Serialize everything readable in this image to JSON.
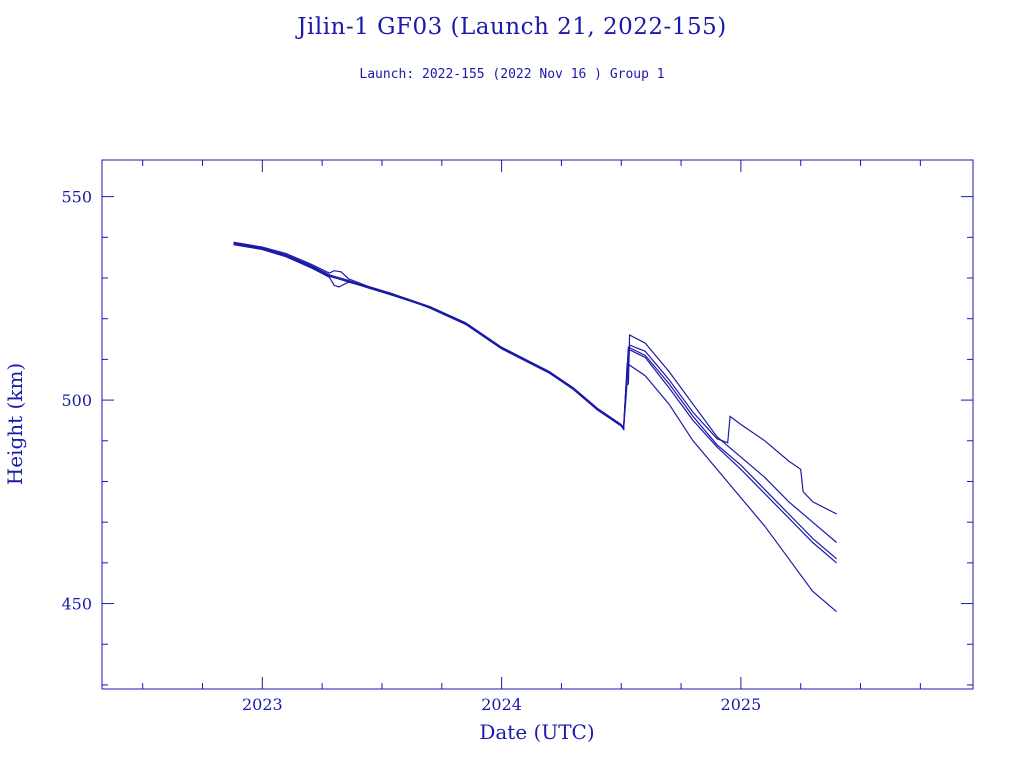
{
  "chart_data": {
    "type": "line",
    "title": "Jilin-1 GF03 (Launch 21, 2022-155)",
    "subtitle": "Launch: 2022-155  (2022 Nov 16 )  Group 1",
    "xlabel": "Date (UTC)",
    "ylabel": "Height (km)",
    "x_unit": "year",
    "xlim": [
      2022.33,
      2025.97
    ],
    "ylim": [
      429,
      559
    ],
    "x_ticks": [
      2023,
      2024,
      2025
    ],
    "x_tick_labels": [
      "2023",
      "2024",
      "2025"
    ],
    "y_ticks": [
      450,
      500,
      550
    ],
    "y_tick_labels": [
      "450",
      "500",
      "550"
    ],
    "grid": false,
    "line_color": "#1a1aa8",
    "series": [
      {
        "values": [
          [
            2022.88,
            538.8
          ],
          [
            2023.0,
            537.6
          ],
          [
            2023.1,
            536.0
          ],
          [
            2023.2,
            533.5
          ],
          [
            2023.28,
            531.2
          ],
          [
            2023.3,
            531.8
          ],
          [
            2023.33,
            531.5
          ],
          [
            2023.36,
            529.8
          ],
          [
            2023.45,
            527.8
          ],
          [
            2023.54,
            526.2
          ],
          [
            2023.7,
            523.0
          ],
          [
            2023.85,
            519.0
          ],
          [
            2024.0,
            513.0
          ],
          [
            2024.2,
            507.0
          ],
          [
            2024.3,
            503.0
          ],
          [
            2024.4,
            498.0
          ],
          [
            2024.5,
            494.0
          ],
          [
            2024.51,
            493.2
          ],
          [
            2024.52,
            503.5
          ],
          [
            2024.53,
            504.0
          ],
          [
            2024.535,
            516.0
          ],
          [
            2024.6,
            514.0
          ],
          [
            2024.7,
            507.0
          ],
          [
            2024.8,
            499.0
          ],
          [
            2024.9,
            491.0
          ],
          [
            2024.95,
            488.5
          ],
          [
            2025.0,
            486.0
          ],
          [
            2025.1,
            481.0
          ],
          [
            2025.2,
            475.0
          ],
          [
            2025.3,
            470.0
          ],
          [
            2025.4,
            465.0
          ]
        ]
      },
      {
        "values": [
          [
            2022.88,
            538.4
          ],
          [
            2023.0,
            537.2
          ],
          [
            2023.1,
            535.5
          ],
          [
            2023.2,
            533.0
          ],
          [
            2023.28,
            530.5
          ],
          [
            2023.36,
            529.0
          ],
          [
            2023.45,
            527.5
          ],
          [
            2023.54,
            525.8
          ],
          [
            2023.7,
            522.8
          ],
          [
            2023.85,
            518.8
          ],
          [
            2024.0,
            512.8
          ],
          [
            2024.2,
            506.8
          ],
          [
            2024.3,
            502.8
          ],
          [
            2024.4,
            497.8
          ],
          [
            2024.5,
            493.8
          ],
          [
            2024.51,
            493.0
          ],
          [
            2024.52,
            500.5
          ],
          [
            2024.535,
            513.5
          ],
          [
            2024.6,
            512.0
          ],
          [
            2024.7,
            505.0
          ],
          [
            2024.8,
            497.0
          ],
          [
            2024.9,
            490.5
          ],
          [
            2024.945,
            489.5
          ],
          [
            2024.955,
            496.0
          ],
          [
            2025.0,
            494.0
          ],
          [
            2025.1,
            490.0
          ],
          [
            2025.2,
            485.0
          ],
          [
            2025.25,
            483.0
          ],
          [
            2025.26,
            477.5
          ],
          [
            2025.3,
            475.0
          ],
          [
            2025.4,
            472.0
          ]
        ]
      },
      {
        "values": [
          [
            2022.88,
            538.2
          ],
          [
            2023.0,
            537.0
          ],
          [
            2023.1,
            535.2
          ],
          [
            2023.2,
            532.6
          ],
          [
            2023.28,
            530.2
          ],
          [
            2023.3,
            528.2
          ],
          [
            2023.32,
            527.8
          ],
          [
            2023.36,
            529.0
          ],
          [
            2023.45,
            527.8
          ],
          [
            2023.54,
            526.2
          ],
          [
            2023.7,
            522.6
          ],
          [
            2023.85,
            518.6
          ],
          [
            2024.0,
            512.6
          ],
          [
            2024.2,
            506.6
          ],
          [
            2024.3,
            502.6
          ],
          [
            2024.4,
            497.6
          ],
          [
            2024.5,
            493.6
          ],
          [
            2024.51,
            492.8
          ],
          [
            2024.525,
            509.0
          ],
          [
            2024.6,
            506.0
          ],
          [
            2024.7,
            499.0
          ],
          [
            2024.8,
            490.0
          ],
          [
            2024.9,
            483.0
          ],
          [
            2025.0,
            476.0
          ],
          [
            2025.1,
            469.0
          ],
          [
            2025.2,
            461.0
          ],
          [
            2025.3,
            453.0
          ],
          [
            2025.4,
            448.0
          ]
        ]
      },
      {
        "values": [
          [
            2022.88,
            538.6
          ],
          [
            2023.0,
            537.4
          ],
          [
            2023.1,
            535.7
          ],
          [
            2023.2,
            533.2
          ],
          [
            2023.28,
            530.8
          ],
          [
            2023.36,
            529.4
          ],
          [
            2023.45,
            527.6
          ],
          [
            2023.54,
            526.0
          ],
          [
            2023.7,
            522.9
          ],
          [
            2023.85,
            518.9
          ],
          [
            2024.0,
            512.9
          ],
          [
            2024.2,
            506.9
          ],
          [
            2024.3,
            502.9
          ],
          [
            2024.4,
            497.9
          ],
          [
            2024.5,
            493.9
          ],
          [
            2024.51,
            493.1
          ],
          [
            2024.53,
            513.0
          ],
          [
            2024.6,
            511.0
          ],
          [
            2024.7,
            504.0
          ],
          [
            2024.8,
            496.0
          ],
          [
            2024.9,
            489.0
          ],
          [
            2025.0,
            484.0
          ],
          [
            2025.1,
            478.0
          ],
          [
            2025.2,
            472.0
          ],
          [
            2025.3,
            466.0
          ],
          [
            2025.4,
            461.0
          ]
        ]
      },
      {
        "values": [
          [
            2022.88,
            538.3
          ],
          [
            2023.0,
            537.1
          ],
          [
            2023.1,
            535.4
          ],
          [
            2023.2,
            532.8
          ],
          [
            2023.28,
            530.4
          ],
          [
            2023.36,
            529.2
          ],
          [
            2023.45,
            527.4
          ],
          [
            2023.54,
            525.9
          ],
          [
            2023.7,
            522.7
          ],
          [
            2023.85,
            518.7
          ],
          [
            2024.0,
            512.7
          ],
          [
            2024.2,
            506.7
          ],
          [
            2024.3,
            502.7
          ],
          [
            2024.4,
            497.7
          ],
          [
            2024.5,
            493.7
          ],
          [
            2024.51,
            492.9
          ],
          [
            2024.53,
            512.5
          ],
          [
            2024.6,
            510.5
          ],
          [
            2024.7,
            503.0
          ],
          [
            2024.8,
            495.0
          ],
          [
            2024.9,
            488.5
          ],
          [
            2025.0,
            483.0
          ],
          [
            2025.1,
            477.0
          ],
          [
            2025.2,
            471.0
          ],
          [
            2025.3,
            465.0
          ],
          [
            2025.4,
            460.0
          ]
        ]
      }
    ]
  }
}
